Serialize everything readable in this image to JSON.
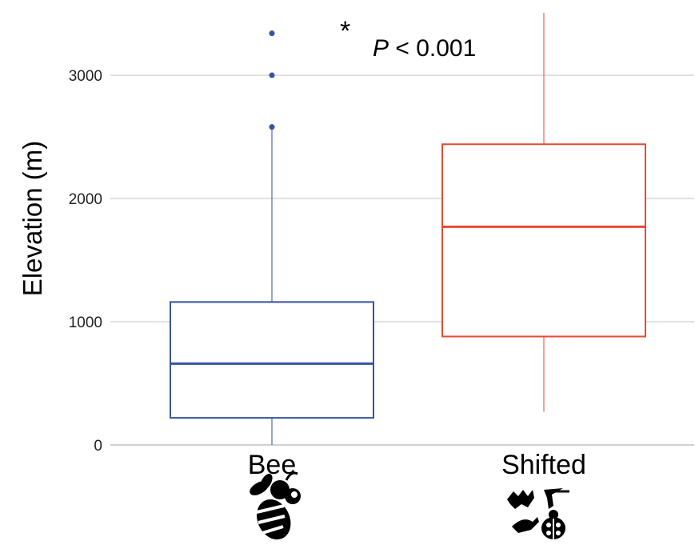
{
  "chart_data": {
    "type": "box",
    "ylabel": "Elevation (m)",
    "ylim": [
      0,
      3500
    ],
    "yticks": [
      0,
      1000,
      2000,
      3000
    ],
    "grid": true,
    "categories": [
      "Bee",
      "Shifted"
    ],
    "series": [
      {
        "category": "Bee",
        "color": "#3553a4",
        "min": 0,
        "q1": 220,
        "median": 660,
        "q3": 1160,
        "max": 2560,
        "outliers": [
          2580,
          3000,
          3340
        ],
        "icon": "bee-icon"
      },
      {
        "category": "Shifted",
        "color": "#e84a32",
        "min": 270,
        "q1": 880,
        "median": 1770,
        "q3": 2440,
        "max": 3500,
        "outliers": [],
        "icon": "bat-bird-hummingbird-ladybug-icon"
      }
    ],
    "annotation": {
      "star": "*",
      "p_italic": "P",
      "p_rest": " < 0.001"
    }
  }
}
